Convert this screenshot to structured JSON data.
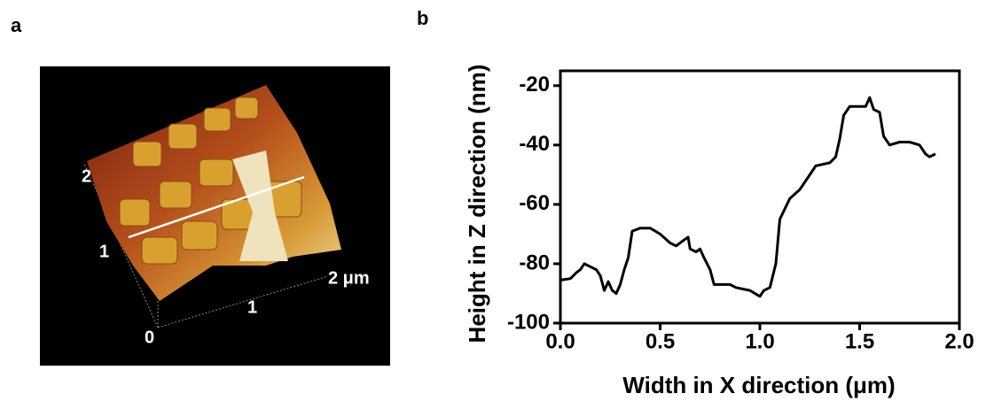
{
  "panel_labels": [
    "a",
    "b"
  ],
  "afm_image": {
    "axis_labels": [
      "2",
      "1",
      "0",
      "1",
      "2 μm"
    ]
  },
  "chart_data": {
    "type": "line",
    "x_label": "Width in X direction (μm)",
    "y_label": "Height in Z direction (nm)",
    "color": "#000000",
    "x": [
      0.0,
      0.05,
      0.08,
      0.1,
      0.12,
      0.15,
      0.18,
      0.2,
      0.22,
      0.24,
      0.26,
      0.28,
      0.3,
      0.32,
      0.34,
      0.36,
      0.4,
      0.45,
      0.5,
      0.55,
      0.58,
      0.62,
      0.64,
      0.65,
      0.68,
      0.7,
      0.72,
      0.75,
      0.77,
      0.85,
      0.88,
      0.95,
      1.0,
      1.02,
      1.05,
      1.08,
      1.1,
      1.15,
      1.2,
      1.25,
      1.28,
      1.35,
      1.38,
      1.4,
      1.42,
      1.45,
      1.5,
      1.53,
      1.55,
      1.57,
      1.6,
      1.62,
      1.65,
      1.7,
      1.75,
      1.8,
      1.83,
      1.85,
      1.88
    ],
    "values": [
      -85.5,
      -85,
      -83,
      -82,
      -80,
      -81,
      -82,
      -84,
      -89,
      -86,
      -89,
      -90,
      -87,
      -82,
      -78,
      -69,
      -68,
      -68,
      -70,
      -73,
      -74,
      -72,
      -71,
      -75,
      -76,
      -75,
      -78,
      -82,
      -87,
      -87,
      -88,
      -89,
      -91,
      -89,
      -88,
      -80,
      -65,
      -58,
      -55,
      -50,
      -47,
      -46,
      -44,
      -38,
      -30,
      -27,
      -27,
      -27,
      -24,
      -28,
      -29,
      -37,
      -40,
      -39,
      -39,
      -40,
      -43,
      -44,
      -43
    ],
    "xlim": [
      0,
      2
    ],
    "ylim": [
      -100,
      -15
    ],
    "xticks": [
      {
        "value": 0,
        "label": "0.0"
      },
      0.5,
      {
        "value": 1,
        "label": "1.0"
      },
      1.5,
      {
        "value": 2,
        "label": "2.0"
      }
    ],
    "yticks": [
      -100,
      -80,
      -60,
      -40,
      -20
    ]
  }
}
